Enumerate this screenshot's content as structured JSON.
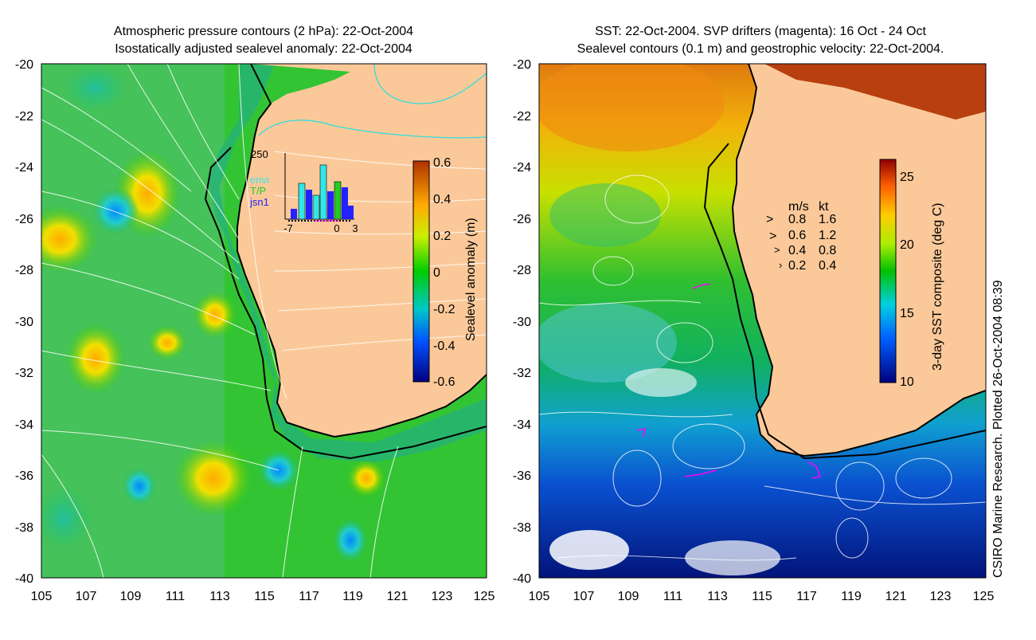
{
  "left_panel": {
    "title_line1": "Atmospheric pressure contours (2 hPa): 22-Oct-2004",
    "title_line2": "Isostatically adjusted sealevel anomaly: 22-Oct-2004",
    "colorbar_label": "Sealevel anomaly (m)",
    "colorbar_ticks": [
      "0.6",
      "0.4",
      "0.2",
      "0",
      "-0.2",
      "-0.4",
      "-0.6"
    ],
    "inset": {
      "y_label": "250",
      "x_ticks": [
        "-7",
        "0",
        "3"
      ],
      "legend": [
        {
          "label": "envi",
          "color": "#33e6e6"
        },
        {
          "label": "T/P",
          "color": "#22cc22"
        },
        {
          "label": "jsn1",
          "color": "#2222ff"
        }
      ]
    }
  },
  "right_panel": {
    "title_line1": "SST: 22-Oct-2004. SVP drifters (magenta): 16 Oct - 24 Oct",
    "title_line2": "Sealevel contours (0.1 m) and geostrophic velocity: 22-Oct-2004.",
    "colorbar_label": "3-day SST composite (deg C)",
    "colorbar_ticks": [
      "25",
      "20",
      "15",
      "10"
    ],
    "velocity_legend": {
      "header_ms": "m/s",
      "header_kt": "kt",
      "rows": [
        {
          "ms": "0.8",
          "kt": "1.6"
        },
        {
          "ms": "0.6",
          "kt": "1.2"
        },
        {
          "ms": "0.4",
          "kt": "0.8"
        },
        {
          "ms": "0.2",
          "kt": "0.4"
        }
      ]
    }
  },
  "axes": {
    "y_ticks": [
      "-20",
      "-22",
      "-24",
      "-26",
      "-28",
      "-30",
      "-32",
      "-34",
      "-36",
      "-38",
      "-40"
    ],
    "x_ticks": [
      "105",
      "107",
      "109",
      "111",
      "113",
      "115",
      "117",
      "119",
      "121",
      "123",
      "125"
    ]
  },
  "credit": "CSIRO Marine Research. Plotted 26-Oct-2004 08:39",
  "colors": {
    "land": "#fbc999",
    "coast": "#000000",
    "contour": "#ffffff",
    "drifter": "#ff00ff"
  }
}
